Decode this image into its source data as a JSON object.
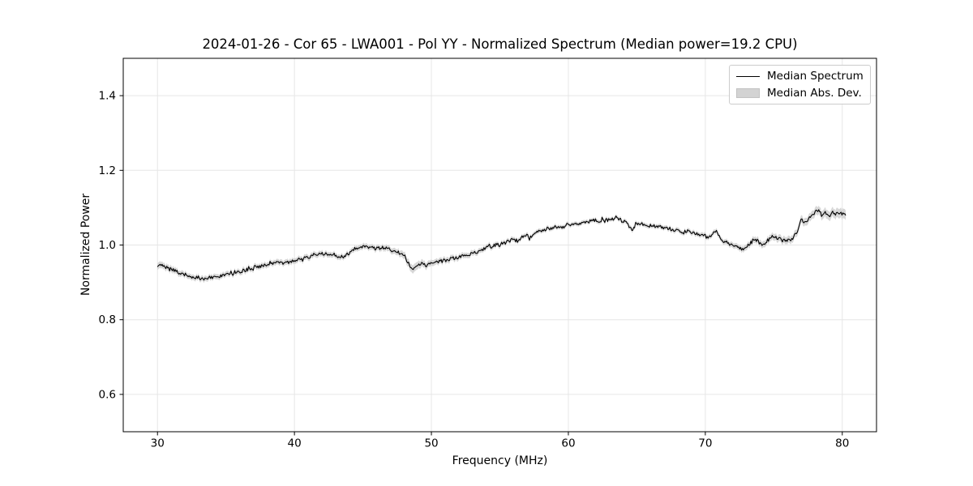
{
  "figure": {
    "background": "#ffffff"
  },
  "chart_data": {
    "type": "line",
    "title": "2024-01-26 - Cor 65 - LWA001 - Pol YY - Normalized Spectrum (Median power=19.2 CPU)",
    "xlabel": "Frequency (MHz)",
    "ylabel": "Normalized Power",
    "xlim": [
      27.5,
      82.5
    ],
    "ylim": [
      0.5,
      1.5
    ],
    "xticks": [
      30,
      40,
      50,
      60,
      70,
      80
    ],
    "yticks": [
      0.6,
      0.8,
      1.0,
      1.2,
      1.4
    ],
    "grid": true,
    "colors": {
      "line": "#000000",
      "band": "#d3d3d3",
      "grid": "#e6e6e6",
      "axes": "#000000",
      "background": "#ffffff",
      "legend_border": "#cccccc"
    },
    "legend": {
      "position": "upper right",
      "items": [
        {
          "label": "Median Spectrum",
          "type": "line",
          "color": "#000000"
        },
        {
          "label": "Median Abs. Dev.",
          "type": "patch",
          "color": "#d3d3d3"
        }
      ]
    },
    "x_start": 30.0,
    "x_end": 80.25,
    "noise_amplitude": 0.0045,
    "series": [
      {
        "name": "Median Spectrum",
        "type": "line",
        "color": "#000000",
        "points": [
          [
            30.0,
            0.944
          ],
          [
            30.3,
            0.948
          ],
          [
            30.6,
            0.94
          ],
          [
            31.0,
            0.934
          ],
          [
            31.5,
            0.927
          ],
          [
            32.0,
            0.921
          ],
          [
            32.5,
            0.916
          ],
          [
            33.0,
            0.912
          ],
          [
            33.5,
            0.911
          ],
          [
            34.0,
            0.913
          ],
          [
            34.5,
            0.917
          ],
          [
            35.0,
            0.921
          ],
          [
            35.5,
            0.925
          ],
          [
            36.0,
            0.929
          ],
          [
            36.5,
            0.934
          ],
          [
            37.0,
            0.938
          ],
          [
            37.5,
            0.943
          ],
          [
            38.0,
            0.948
          ],
          [
            38.5,
            0.954
          ],
          [
            38.8,
            0.957
          ],
          [
            39.1,
            0.952
          ],
          [
            39.5,
            0.955
          ],
          [
            40.0,
            0.958
          ],
          [
            40.5,
            0.96
          ],
          [
            41.0,
            0.966
          ],
          [
            41.5,
            0.973
          ],
          [
            42.0,
            0.976
          ],
          [
            42.5,
            0.975
          ],
          [
            43.0,
            0.972
          ],
          [
            43.3,
            0.968
          ],
          [
            43.7,
            0.973
          ],
          [
            44.0,
            0.977
          ],
          [
            44.5,
            0.99
          ],
          [
            45.0,
            0.996
          ],
          [
            45.3,
            0.998
          ],
          [
            45.7,
            0.994
          ],
          [
            46.0,
            0.991
          ],
          [
            46.5,
            0.993
          ],
          [
            47.0,
            0.989
          ],
          [
            47.5,
            0.982
          ],
          [
            48.0,
            0.971
          ],
          [
            48.3,
            0.954
          ],
          [
            48.6,
            0.934
          ],
          [
            48.9,
            0.944
          ],
          [
            49.2,
            0.95
          ],
          [
            49.6,
            0.947
          ],
          [
            50.0,
            0.953
          ],
          [
            50.5,
            0.956
          ],
          [
            51.0,
            0.959
          ],
          [
            51.5,
            0.963
          ],
          [
            52.0,
            0.968
          ],
          [
            52.5,
            0.973
          ],
          [
            53.0,
            0.978
          ],
          [
            53.5,
            0.985
          ],
          [
            54.0,
            0.992
          ],
          [
            54.5,
            0.999
          ],
          [
            55.0,
            1.002
          ],
          [
            55.5,
            1.008
          ],
          [
            56.0,
            1.014
          ],
          [
            56.3,
            1.011
          ],
          [
            56.6,
            1.021
          ],
          [
            57.0,
            1.027
          ],
          [
            57.3,
            1.023
          ],
          [
            57.7,
            1.035
          ],
          [
            58.0,
            1.039
          ],
          [
            58.5,
            1.044
          ],
          [
            59.0,
            1.047
          ],
          [
            59.5,
            1.05
          ],
          [
            60.0,
            1.053
          ],
          [
            60.5,
            1.055
          ],
          [
            61.0,
            1.058
          ],
          [
            61.5,
            1.065
          ],
          [
            62.0,
            1.068
          ],
          [
            62.4,
            1.064
          ],
          [
            62.8,
            1.067
          ],
          [
            63.2,
            1.071
          ],
          [
            63.5,
            1.073
          ],
          [
            63.8,
            1.067
          ],
          [
            64.2,
            1.061
          ],
          [
            64.5,
            1.05
          ],
          [
            64.7,
            1.038
          ],
          [
            64.9,
            1.055
          ],
          [
            65.2,
            1.058
          ],
          [
            65.6,
            1.053
          ],
          [
            66.0,
            1.051
          ],
          [
            66.4,
            1.047
          ],
          [
            66.8,
            1.05
          ],
          [
            67.2,
            1.044
          ],
          [
            67.6,
            1.041
          ],
          [
            68.0,
            1.04
          ],
          [
            68.4,
            1.035
          ],
          [
            68.8,
            1.038
          ],
          [
            69.2,
            1.032
          ],
          [
            69.6,
            1.028
          ],
          [
            70.0,
            1.024
          ],
          [
            70.4,
            1.02
          ],
          [
            70.8,
            1.04
          ],
          [
            71.2,
            1.014
          ],
          [
            71.6,
            1.005
          ],
          [
            72.0,
            1.002
          ],
          [
            72.4,
            0.995
          ],
          [
            72.7,
            0.989
          ],
          [
            73.0,
            0.993
          ],
          [
            73.3,
            1.005
          ],
          [
            73.6,
            1.017
          ],
          [
            73.9,
            1.007
          ],
          [
            74.2,
            0.997
          ],
          [
            74.5,
            1.012
          ],
          [
            74.8,
            1.02
          ],
          [
            75.1,
            1.022
          ],
          [
            75.4,
            1.018
          ],
          [
            75.7,
            1.013
          ],
          [
            76.0,
            1.015
          ],
          [
            76.3,
            1.013
          ],
          [
            76.6,
            1.03
          ],
          [
            76.8,
            1.04
          ],
          [
            77.0,
            1.072
          ],
          [
            77.2,
            1.059
          ],
          [
            77.5,
            1.066
          ],
          [
            77.8,
            1.082
          ],
          [
            78.1,
            1.09
          ],
          [
            78.3,
            1.095
          ],
          [
            78.5,
            1.08
          ],
          [
            78.8,
            1.088
          ],
          [
            79.0,
            1.075
          ],
          [
            79.3,
            1.09
          ],
          [
            79.5,
            1.082
          ],
          [
            79.8,
            1.088
          ],
          [
            80.0,
            1.082
          ],
          [
            80.25,
            1.078
          ]
        ]
      },
      {
        "name": "Median Abs. Dev.",
        "type": "band",
        "color": "#d3d3d3",
        "half_width": [
          [
            30.0,
            0.009
          ],
          [
            32.0,
            0.0075
          ],
          [
            36.0,
            0.007
          ],
          [
            40.0,
            0.0075
          ],
          [
            44.0,
            0.007
          ],
          [
            47.5,
            0.008
          ],
          [
            48.6,
            0.011
          ],
          [
            50.0,
            0.008
          ],
          [
            53.0,
            0.007
          ],
          [
            56.0,
            0.006
          ],
          [
            60.0,
            0.0055
          ],
          [
            64.0,
            0.0055
          ],
          [
            68.0,
            0.006
          ],
          [
            71.0,
            0.0065
          ],
          [
            73.0,
            0.008
          ],
          [
            75.0,
            0.009
          ],
          [
            77.0,
            0.01
          ],
          [
            78.5,
            0.0115
          ],
          [
            80.25,
            0.013
          ]
        ]
      }
    ]
  }
}
